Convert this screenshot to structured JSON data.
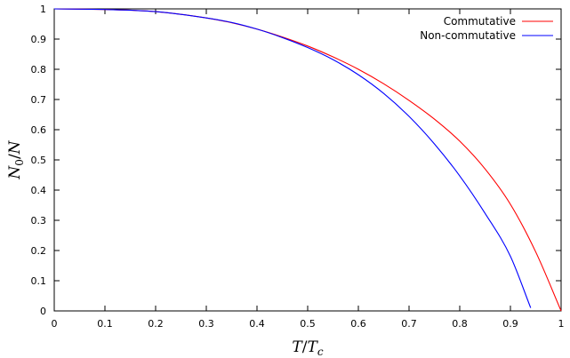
{
  "chart_data": {
    "type": "line",
    "xlabel": "T/T_c",
    "ylabel": "N_0/N",
    "xlim": [
      0,
      1
    ],
    "ylim": [
      0,
      1
    ],
    "x_ticks": [
      "0",
      "0.1",
      "0.2",
      "0.3",
      "0.4",
      "0.5",
      "0.6",
      "0.7",
      "0.8",
      "0.9",
      "1"
    ],
    "y_ticks": [
      "0",
      "0.1",
      "0.2",
      "0.3",
      "0.4",
      "0.5",
      "0.6",
      "0.7",
      "0.8",
      "0.9",
      "1"
    ],
    "grid": false,
    "legend_position": "top-right",
    "series": [
      {
        "name": "Commutative",
        "color": "#ff0000",
        "x": [
          0,
          0.1,
          0.2,
          0.3,
          0.35,
          0.4,
          0.45,
          0.5,
          0.55,
          0.6,
          0.65,
          0.7,
          0.75,
          0.8,
          0.85,
          0.9,
          0.95,
          1.0
        ],
        "y": [
          1,
          0.998,
          0.991,
          0.97,
          0.954,
          0.933,
          0.907,
          0.877,
          0.841,
          0.8,
          0.752,
          0.697,
          0.635,
          0.562,
          0.47,
          0.353,
          0.195,
          0.0
        ]
      },
      {
        "name": "Non-commutative",
        "color": "#0000ff",
        "x": [
          0,
          0.1,
          0.2,
          0.3,
          0.35,
          0.4,
          0.45,
          0.5,
          0.55,
          0.6,
          0.65,
          0.7,
          0.75,
          0.8,
          0.85,
          0.9,
          0.94
        ],
        "y": [
          1,
          0.998,
          0.991,
          0.97,
          0.955,
          0.933,
          0.905,
          0.872,
          0.832,
          0.782,
          0.72,
          0.644,
          0.553,
          0.447,
          0.323,
          0.181,
          0.01
        ]
      }
    ]
  }
}
